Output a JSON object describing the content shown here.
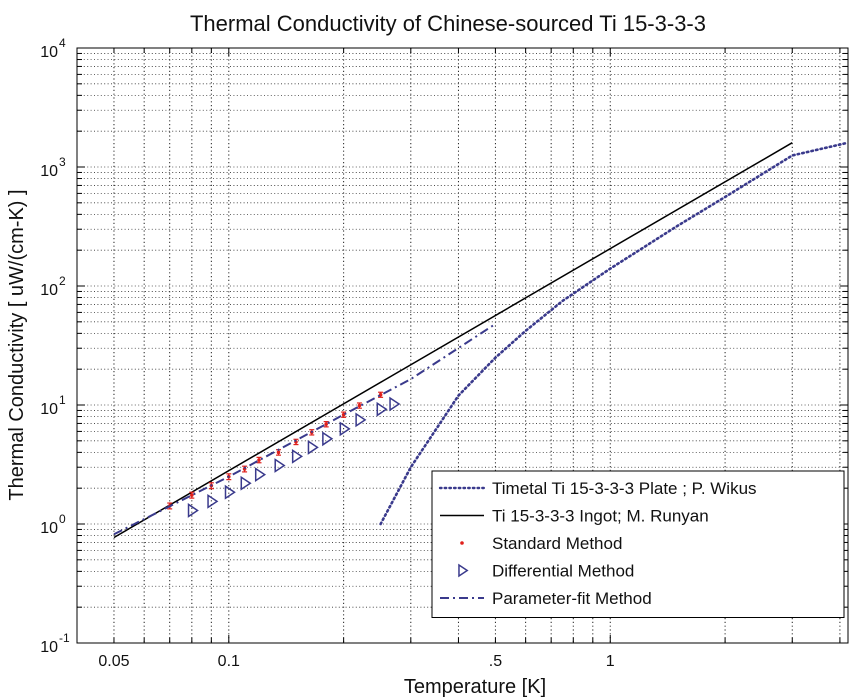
{
  "chart_data": {
    "type": "line",
    "title": "Thermal Conductivity of Chinese-sourced Ti 15-3-3-3",
    "xlabel": "Temperature [K]",
    "ylabel": "Thermal Conductivity [ uW/(cm-K) ]",
    "xscale": "log",
    "yscale": "log",
    "xlim": [
      0.04,
      4.2
    ],
    "ylim": [
      0.1,
      10000
    ],
    "grid": true,
    "legend_position": "bottom-right",
    "x_ticks": [
      {
        "value": 0.05,
        "label": "0.05"
      },
      {
        "value": 0.1,
        "label": "0.1"
      },
      {
        "value": 0.5,
        "label": ".5"
      },
      {
        "value": 1,
        "label": "1"
      }
    ],
    "y_ticks": [
      {
        "value": 0.1,
        "base": "10",
        "exp": "-1"
      },
      {
        "value": 1,
        "base": "10",
        "exp": "0"
      },
      {
        "value": 10,
        "base": "10",
        "exp": "1"
      },
      {
        "value": 100,
        "base": "10",
        "exp": "2"
      },
      {
        "value": 1000,
        "base": "10",
        "exp": "3"
      },
      {
        "value": 10000,
        "base": "10",
        "exp": "4"
      }
    ],
    "series": [
      {
        "name": "Timetal Ti 15-3-3-3 Plate ; P. Wikus",
        "style": "dotted",
        "color": "#3a3a8c",
        "x": [
          0.25,
          0.3,
          0.4,
          0.5,
          0.6,
          0.75,
          1.0,
          1.5,
          2.0,
          3.0,
          4.2
        ],
        "y": [
          1.0,
          3.0,
          12,
          25,
          42,
          75,
          140,
          320,
          560,
          1250,
          1600
        ]
      },
      {
        "name": "Ti 15-3-3-3 Ingot; M. Runyan",
        "style": "solid",
        "color": "#000000",
        "x": [
          0.05,
          3.0
        ],
        "y": [
          0.77,
          1600
        ]
      },
      {
        "name": "Standard Method",
        "style": "points",
        "color": "#e0201b",
        "x": [
          0.07,
          0.08,
          0.09,
          0.1,
          0.11,
          0.12,
          0.135,
          0.15,
          0.165,
          0.18,
          0.2,
          0.22,
          0.25
        ],
        "y": [
          1.42,
          1.75,
          2.1,
          2.5,
          2.9,
          3.45,
          4.0,
          4.9,
          5.9,
          6.9,
          8.3,
          9.9,
          12.2
        ],
        "yerr": [
          0.08,
          0.1,
          0.12,
          0.14,
          0.16,
          0.18,
          0.21,
          0.25,
          0.3,
          0.35,
          0.42,
          0.5,
          0.6
        ]
      },
      {
        "name": "Differential Method",
        "style": "triangles",
        "color": "#3a3a8c",
        "x": [
          0.08,
          0.09,
          0.1,
          0.11,
          0.12,
          0.135,
          0.15,
          0.165,
          0.18,
          0.2,
          0.22,
          0.25,
          0.27
        ],
        "y": [
          1.3,
          1.55,
          1.85,
          2.2,
          2.6,
          3.1,
          3.7,
          4.4,
          5.2,
          6.3,
          7.5,
          9.2,
          10.2
        ]
      },
      {
        "name": "Parameter-fit Method",
        "style": "dashdot",
        "color": "#3a3a8c",
        "x": [
          0.05,
          0.1,
          0.2,
          0.3,
          0.5
        ],
        "y": [
          0.82,
          2.5,
          8.3,
          16.5,
          48
        ]
      }
    ]
  }
}
